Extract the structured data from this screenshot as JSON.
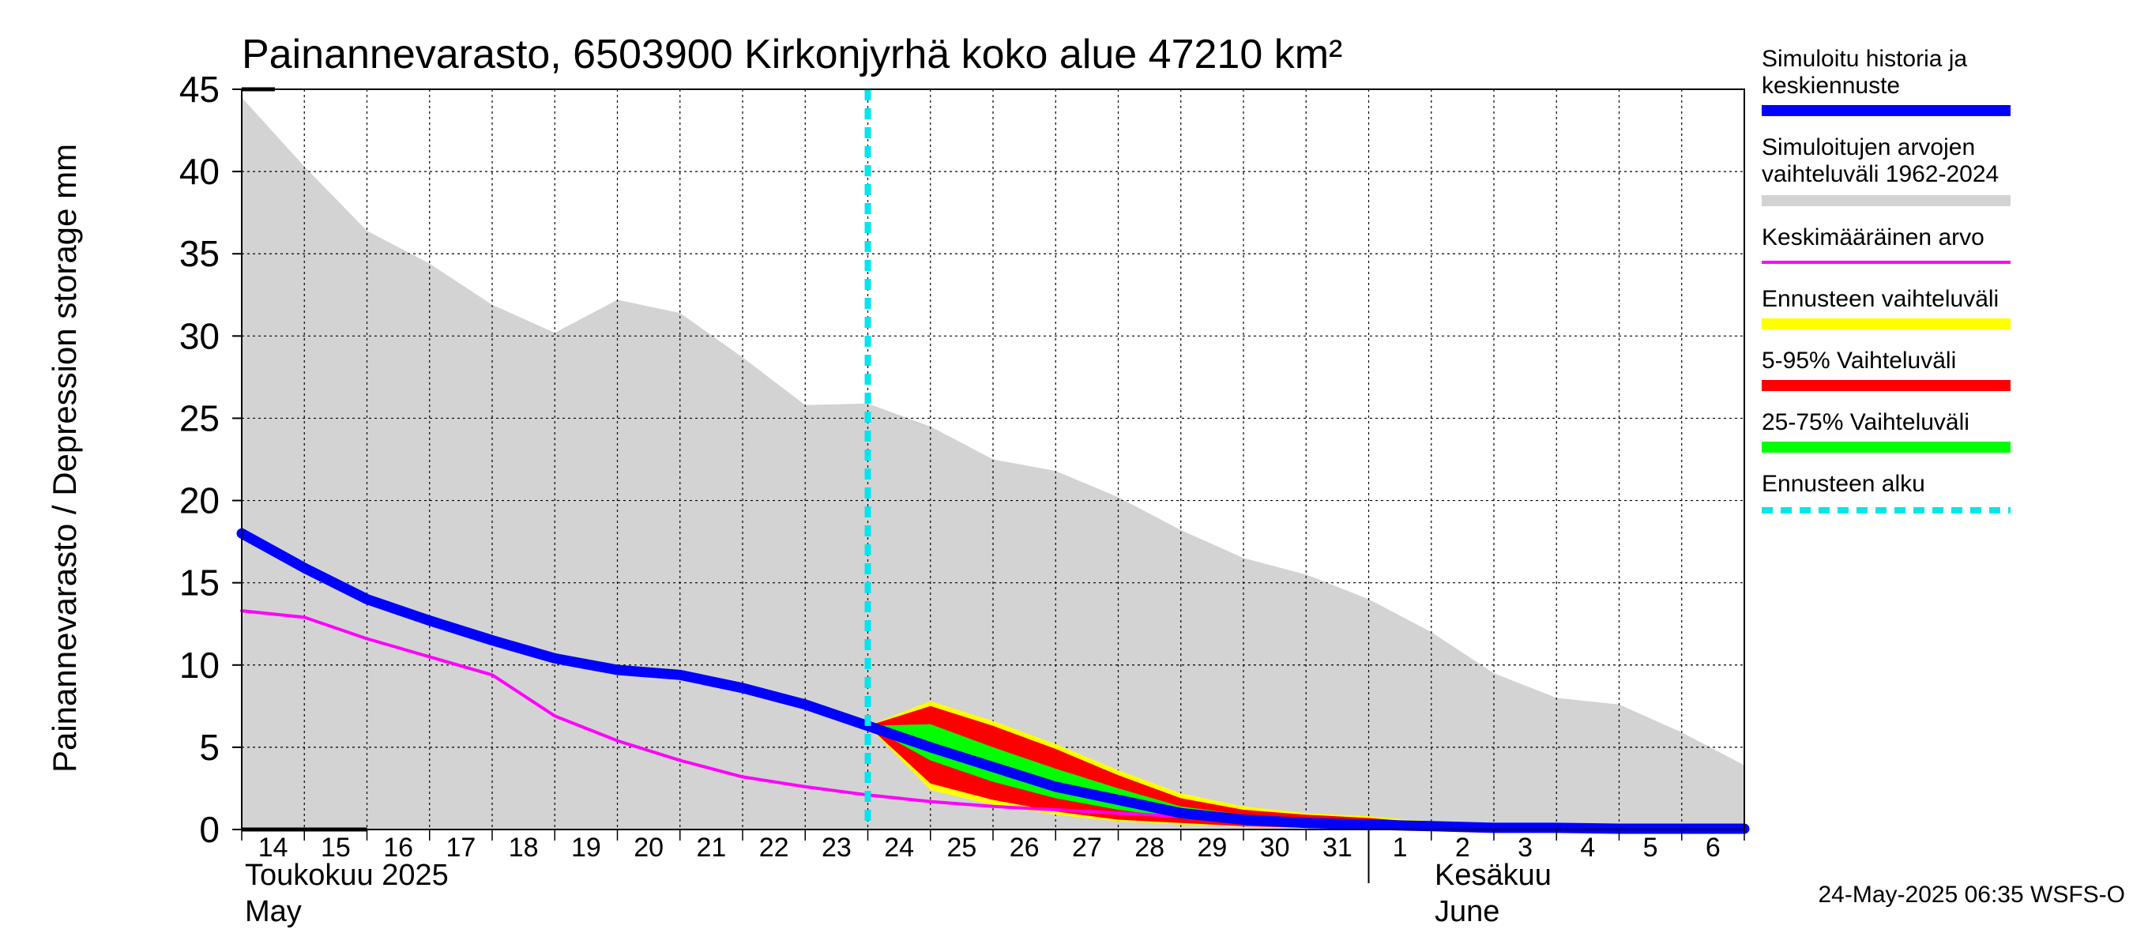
{
  "chart_data": {
    "type": "area",
    "title": "Painannevarasto, 6503900 Kirkonjyrhä koko alue 47210 km²",
    "ylabel": "Painannevarasto / Depression storage    mm",
    "ylim": [
      0,
      45
    ],
    "yticks": [
      "0",
      "5",
      "10",
      "15",
      "20",
      "25",
      "30",
      "35",
      "40",
      "45"
    ],
    "xlim": [
      "2025-05-14",
      "2025-06-07"
    ],
    "grid": true,
    "x_tick_labels": [
      "14",
      "15",
      "16",
      "17",
      "18",
      "19",
      "20",
      "21",
      "22",
      "23",
      "24",
      "25",
      "26",
      "27",
      "28",
      "29",
      "30",
      "31",
      "1",
      "2",
      "3",
      "4",
      "5",
      "6"
    ],
    "month_labels": {
      "may_fi": "Toukokuu  2025",
      "may_en": "May",
      "june_fi": "Kesäkuu",
      "june_en": "June"
    },
    "forecast_start": "2025-05-24",
    "footer": "24-May-2025 06:35 WSFS-O",
    "legend": {
      "history": "Simuloitu historia ja keskiennuste",
      "range": "Simuloitujen arvojen vaihteluväli 1962-2024",
      "mean": "Keskimääräinen arvo",
      "forecast_range": "Ennusteen vaihteluväli",
      "p5_95": "5-95% Vaihteluväli",
      "p25_75": "25-75% Vaihteluväli",
      "forecast_start": "Ennusteen alku"
    },
    "colors": {
      "history": "#0000ff",
      "range": "#d3d3d3",
      "mean": "#ff00ff",
      "forecast_range": "#ffff00",
      "p5_95": "#ff0000",
      "p25_75": "#00ff00",
      "forecast_start": "#00e5ee"
    },
    "dates": [
      "2025-05-14",
      "2025-05-15",
      "2025-05-16",
      "2025-05-17",
      "2025-05-18",
      "2025-05-19",
      "2025-05-20",
      "2025-05-21",
      "2025-05-22",
      "2025-05-23",
      "2025-05-24",
      "2025-05-25",
      "2025-05-26",
      "2025-05-27",
      "2025-05-28",
      "2025-05-29",
      "2025-05-30",
      "2025-05-31",
      "2025-06-01",
      "2025-06-02",
      "2025-06-03",
      "2025-06-04",
      "2025-06-05",
      "2025-06-06",
      "2025-06-07"
    ],
    "range_upper": [
      44.5,
      40.3,
      36.4,
      34.4,
      31.9,
      30.2,
      32.2,
      31.4,
      28.7,
      25.8,
      25.9,
      24.5,
      22.5,
      21.8,
      20.2,
      18.2,
      16.5,
      15.5,
      14.0,
      12.0,
      9.5,
      8.0,
      7.6,
      5.9,
      3.9
    ],
    "range_lower": [
      0,
      0,
      0,
      0,
      0,
      0,
      0,
      0,
      0,
      0,
      0,
      0,
      0,
      0,
      0,
      0,
      0,
      0,
      0,
      0,
      0,
      0,
      0,
      0,
      0
    ],
    "history": [
      18.0,
      15.9,
      14.0,
      12.7,
      11.5,
      10.4,
      9.7,
      9.4,
      8.6,
      7.6,
      6.3,
      5.0,
      3.8,
      2.6,
      1.8,
      1.0,
      0.6,
      0.4,
      0.3,
      0.2,
      0.1,
      0.1,
      0.05,
      0.05,
      0.05
    ],
    "mean": [
      13.3,
      12.9,
      11.6,
      10.5,
      9.4,
      6.9,
      5.4,
      4.2,
      3.2,
      2.6,
      2.1,
      1.7,
      1.4,
      1.2,
      1.0,
      0.8,
      0.6,
      0.5,
      0.4,
      0.3,
      0.25,
      0.2,
      0.2,
      0.2,
      0.2
    ],
    "forecast_dates": [
      "2025-05-24",
      "2025-05-25",
      "2025-05-26",
      "2025-05-27",
      "2025-05-28",
      "2025-05-29",
      "2025-05-30",
      "2025-05-31",
      "2025-06-01",
      "2025-06-02",
      "2025-06-03",
      "2025-06-04",
      "2025-06-05",
      "2025-06-06",
      "2025-06-07"
    ],
    "forecast_max": [
      6.3,
      7.8,
      6.6,
      5.2,
      3.6,
      2.2,
      1.4,
      1.0,
      0.8,
      0.5,
      0.35,
      0.25,
      0.2,
      0.15,
      0.1
    ],
    "forecast_min": [
      6.3,
      2.4,
      1.5,
      0.9,
      0.5,
      0.3,
      0.2,
      0.1,
      0.05,
      0.02,
      0.01,
      0.01,
      0.0,
      0.0,
      0.0
    ],
    "p95": [
      6.3,
      7.5,
      6.3,
      4.9,
      3.3,
      1.9,
      1.2,
      0.9,
      0.7,
      0.4,
      0.3,
      0.2,
      0.15,
      0.1,
      0.1
    ],
    "p5": [
      6.3,
      2.8,
      1.8,
      1.1,
      0.6,
      0.4,
      0.2,
      0.1,
      0.05,
      0.02,
      0.01,
      0.01,
      0.0,
      0.0,
      0.0
    ],
    "p75": [
      6.3,
      6.4,
      5.0,
      3.7,
      2.5,
      1.4,
      0.9,
      0.6,
      0.5,
      0.3,
      0.2,
      0.15,
      0.1,
      0.1,
      0.05
    ],
    "p25": [
      6.3,
      4.2,
      2.9,
      1.9,
      1.2,
      0.7,
      0.4,
      0.3,
      0.2,
      0.1,
      0.05,
      0.05,
      0.02,
      0.01,
      0.01
    ]
  }
}
